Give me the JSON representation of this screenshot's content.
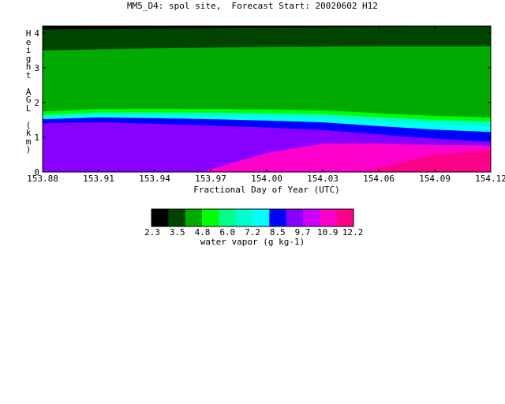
{
  "title": "MM5_D4: spol site,  Forecast Start: 20020602 H12",
  "chart_data": {
    "type": "heatmap",
    "title": "MM5_D4: spol site,  Forecast Start: 20020602 H12",
    "xlabel": "Fractional Day of Year (UTC)",
    "ylabel": "Height AGL (km)",
    "xlim": [
      153.88,
      154.12
    ],
    "ylim": [
      0,
      4.2
    ],
    "x_ticks": [
      "153.88",
      "153.91",
      "153.94",
      "153.97",
      "154.00",
      "154.03",
      "154.06",
      "154.09",
      "154.12"
    ],
    "x_tick_values": [
      153.88,
      153.91,
      153.94,
      153.97,
      154.0,
      154.03,
      154.06,
      154.09,
      154.12
    ],
    "y_ticks": [
      "0",
      "1",
      "2",
      "3",
      "4"
    ],
    "y_tick_values": [
      0,
      1,
      2,
      3,
      4
    ],
    "colorbar": {
      "label": "water vapor (g kg-1)",
      "tick_labels": [
        "2.3",
        "3.5",
        "4.8",
        "6.0",
        "7.2",
        "8.5",
        "9.7",
        "10.9",
        "12.2"
      ],
      "colors": [
        "#000000",
        "#004400",
        "#00aa00",
        "#00ff00",
        "#00ff88",
        "#00ffcc",
        "#00ffff",
        "#0000ff",
        "#8800ff",
        "#cc00ff",
        "#ff00cc",
        "#ff0088"
      ]
    },
    "regions": [
      {
        "name": "moist-surface",
        "color": "#ff00cc",
        "x": [
          153.965,
          154.0,
          154.03,
          154.06,
          154.09,
          154.12
        ],
        "y_top": [
          0,
          0.55,
          0.82,
          0.82,
          0.78,
          0.76
        ]
      },
      {
        "name": "blue-layer",
        "color": "#0000ff",
        "x": [
          153.88,
          153.91,
          153.94,
          153.97,
          154.0,
          154.03,
          154.06,
          154.09,
          154.12
        ],
        "y_top": [
          1.52,
          1.57,
          1.55,
          1.52,
          1.48,
          1.43,
          1.32,
          1.22,
          1.15
        ]
      },
      {
        "name": "green-layer",
        "color": "#00aa00",
        "x": [
          153.88,
          153.94,
          154.0,
          154.06,
          154.12
        ],
        "y_top": [
          3.5,
          3.56,
          3.6,
          3.62,
          3.62
        ]
      },
      {
        "name": "dark-green-top",
        "color": "#004400",
        "x": [
          153.88,
          154.12
        ],
        "y_top": [
          4.1,
          4.2
        ]
      }
    ]
  }
}
